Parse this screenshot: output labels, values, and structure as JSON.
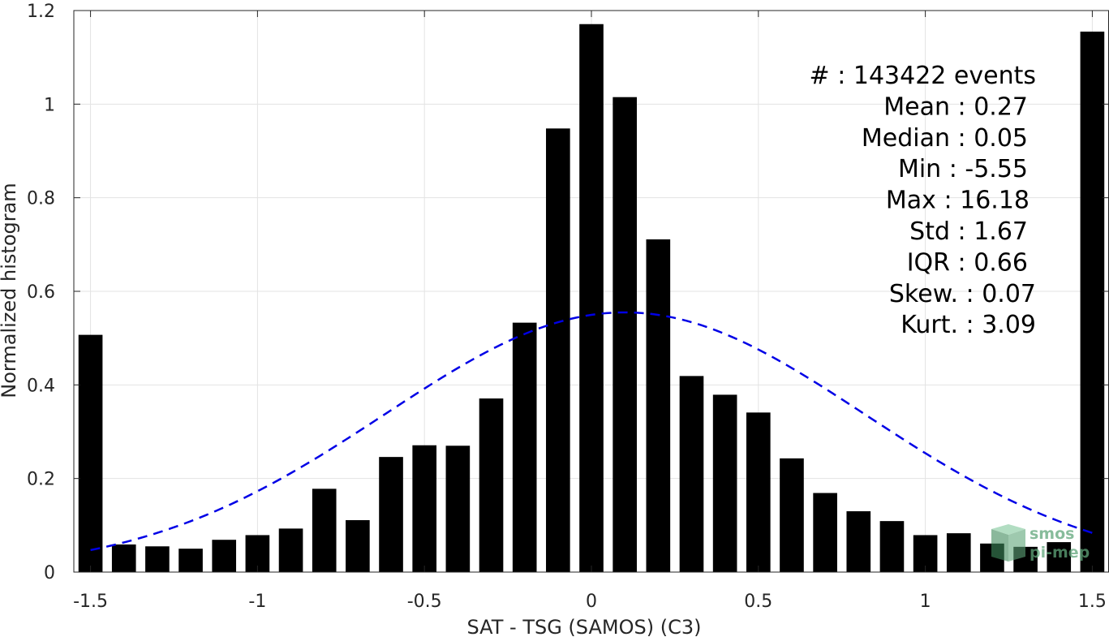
{
  "chart_data": {
    "type": "bar",
    "xlabel": "SAT - TSG (SAMOS) (C3)",
    "ylabel": "Normalized histogram",
    "xlim": [
      -1.55,
      1.55
    ],
    "ylim": [
      0,
      1.2
    ],
    "xticks": [
      "-1.5",
      "-1",
      "-0.5",
      "0",
      "0.5",
      "1",
      "1.5"
    ],
    "xtick_values": [
      -1.5,
      -1,
      -0.5,
      0,
      0.5,
      1,
      1.5
    ],
    "yticks": [
      "0",
      "0.2",
      "0.4",
      "0.6",
      "0.8",
      "1",
      "1.2"
    ],
    "ytick_values": [
      0,
      0.2,
      0.4,
      0.6,
      0.8,
      1.0,
      1.2
    ],
    "grid": true,
    "x": [
      -1.5,
      -1.4,
      -1.3,
      -1.2,
      -1.1,
      -1.0,
      -0.9,
      -0.8,
      -0.7,
      -0.6,
      -0.5,
      -0.4,
      -0.3,
      -0.2,
      -0.1,
      0.0,
      0.1,
      0.2,
      0.3,
      0.4,
      0.5,
      0.6,
      0.7,
      0.8,
      0.9,
      1.0,
      1.1,
      1.2,
      1.3,
      1.4,
      1.5
    ],
    "values": [
      0.507,
      0.059,
      0.055,
      0.05,
      0.069,
      0.079,
      0.093,
      0.178,
      0.111,
      0.246,
      0.271,
      0.27,
      0.371,
      0.533,
      0.948,
      1.171,
      1.015,
      0.711,
      0.419,
      0.379,
      0.341,
      0.243,
      0.169,
      0.13,
      0.109,
      0.079,
      0.083,
      0.061,
      0.054,
      0.064,
      1.155
    ],
    "bar_color": "#000000",
    "fit": {
      "type": "gaussian",
      "mean": 0.1,
      "std": 0.72,
      "peak": 0.555,
      "x_range": [
        -1.5,
        1.5
      ],
      "color": "#0000e6",
      "style": "dashed"
    },
    "stats": [
      "#  : 143422 events",
      "Mean : 0.27",
      "Median : 0.05",
      "Min : -5.55",
      "Max : 16.18",
      "Std : 1.67",
      "IQR : 0.66",
      "Skew. : 0.07",
      "Kurt. : 3.09"
    ],
    "stats_placement": "top-right"
  },
  "watermark": {
    "line1": "smos",
    "line2": "pi-mep",
    "color": "#5fa67a",
    "icon": "cube-logo-icon"
  }
}
